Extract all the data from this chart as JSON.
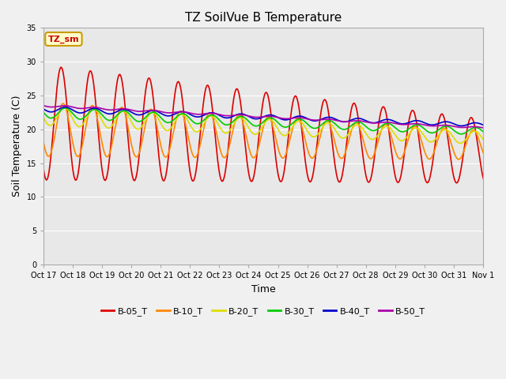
{
  "title": "TZ SoilVue B Temperature",
  "xlabel": "Time",
  "ylabel": "Soil Temperature (C)",
  "ylim": [
    0,
    35
  ],
  "yticks": [
    0,
    5,
    10,
    15,
    20,
    25,
    30,
    35
  ],
  "plot_bg_color": "#e8e8e8",
  "fig_bg_color": "#f0f0f0",
  "annotation_text": "TZ_sm",
  "annotation_bg": "#ffffcc",
  "annotation_border": "#cc9900",
  "series_colors": {
    "B-05_T": "#dd0000",
    "B-10_T": "#ff8800",
    "B-20_T": "#dddd00",
    "B-30_T": "#00cc00",
    "B-40_T": "#0000cc",
    "B-50_T": "#aa00aa"
  },
  "x_tick_labels": [
    "Oct 17",
    "Oct 18",
    "Oct 19",
    "Oct 20",
    "Oct 21",
    "Oct 22",
    "Oct 23",
    "Oct 24",
    "Oct 25",
    "Oct 26",
    "Oct 27",
    "Oct 28",
    "Oct 29",
    "Oct 30",
    "Oct 31",
    "Nov 1"
  ],
  "x_tick_positions": [
    0,
    1,
    2,
    3,
    4,
    5,
    6,
    7,
    8,
    9,
    10,
    11,
    12,
    13,
    14,
    15
  ],
  "n_days": 16
}
